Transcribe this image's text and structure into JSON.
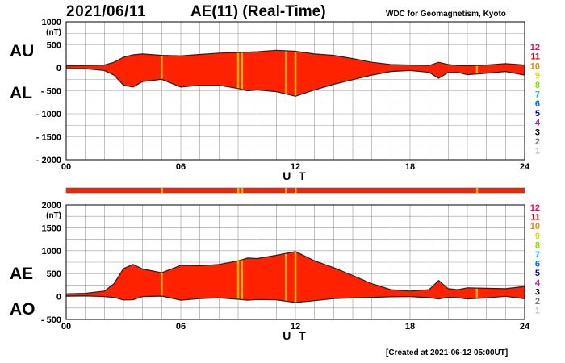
{
  "header": {
    "date": "2021/06/11",
    "title": "AE(11) (Real-Time)",
    "credit": "WDC for Geomagnetism, Kyoto"
  },
  "footer": {
    "created": "[Created at 2021-06-12 05:00UT]"
  },
  "station_scale": {
    "labels": [
      "12",
      "11",
      "10",
      "9",
      "8",
      "7",
      "6",
      "5",
      "4",
      "3",
      "2",
      "1"
    ],
    "colors": [
      "#ff0066",
      "#dd0000",
      "#ee8800",
      "#dddd00",
      "#88dd00",
      "#00ccdd",
      "#0066ff",
      "#0000cc",
      "#cc00cc",
      "#000000",
      "#777777",
      "#bbbbbb"
    ]
  },
  "colors": {
    "fill": "#ff2200",
    "accent": "#ffaa00",
    "line": "#222222",
    "grid": "#999999"
  },
  "chart_data": [
    {
      "type": "area",
      "panel": "AU/AL",
      "series_labels": [
        "AU",
        "AL"
      ],
      "ylabel_unit": "(nT)",
      "ylim": [
        -2000,
        1000
      ],
      "yticks": [
        1000,
        500,
        0,
        -500,
        -1000,
        -1500,
        -2000
      ],
      "xlabel": "U T",
      "xlim": [
        0,
        24
      ],
      "xticks": [
        "00",
        "06",
        "12",
        "18",
        "24"
      ],
      "grid": true,
      "x_hours": [
        0,
        1,
        2,
        2.5,
        3,
        3.5,
        4,
        5,
        6,
        7,
        8,
        9,
        9.5,
        10,
        11,
        12,
        13,
        14,
        15,
        16,
        17,
        18,
        19,
        19.5,
        20,
        20.5,
        21,
        22,
        23,
        24
      ],
      "AU": [
        40,
        50,
        60,
        120,
        230,
        280,
        300,
        270,
        260,
        290,
        320,
        330,
        340,
        350,
        380,
        360,
        300,
        270,
        200,
        120,
        70,
        60,
        50,
        120,
        70,
        50,
        40,
        60,
        90,
        60
      ],
      "AL": [
        -20,
        -20,
        -60,
        -160,
        -380,
        -420,
        -300,
        -250,
        -420,
        -380,
        -380,
        -450,
        -500,
        -480,
        -520,
        -620,
        -480,
        -360,
        -260,
        -160,
        -80,
        -60,
        -100,
        -230,
        -100,
        -100,
        -150,
        -120,
        -80,
        -160
      ],
      "highlight_hours": [
        5,
        9.0,
        9.2,
        11.5,
        12.0,
        21.5
      ]
    },
    {
      "type": "area",
      "panel": "AE/AO",
      "series_labels": [
        "AE",
        "AO"
      ],
      "ylabel_unit": "(nT)",
      "ylim": [
        -500,
        2000
      ],
      "yticks": [
        2000,
        1500,
        1000,
        500,
        0,
        -500
      ],
      "xlabel": "U T",
      "xlim": [
        0,
        24
      ],
      "xticks": [
        "00",
        "06",
        "12",
        "18",
        "24"
      ],
      "grid": true,
      "x_hours": [
        0,
        1,
        2,
        2.5,
        3,
        3.5,
        4,
        5,
        6,
        7,
        8,
        9,
        9.5,
        10,
        11,
        12,
        13,
        14,
        15,
        16,
        17,
        18,
        19,
        19.5,
        20,
        20.5,
        21,
        22,
        23,
        24
      ],
      "AE": [
        60,
        70,
        120,
        280,
        610,
        700,
        600,
        520,
        680,
        670,
        700,
        780,
        840,
        830,
        900,
        980,
        780,
        630,
        460,
        280,
        150,
        120,
        150,
        350,
        170,
        150,
        190,
        180,
        170,
        220
      ],
      "AO": [
        10,
        15,
        0,
        -20,
        -75,
        -70,
        0,
        10,
        -80,
        -45,
        -30,
        -60,
        -80,
        -65,
        -70,
        -130,
        -90,
        -45,
        -30,
        -20,
        -5,
        0,
        -25,
        -55,
        -15,
        -25,
        -55,
        -30,
        5,
        -50
      ],
      "highlight_hours": [
        5,
        9.0,
        9.2,
        11.5,
        12.0,
        21.5
      ]
    }
  ]
}
